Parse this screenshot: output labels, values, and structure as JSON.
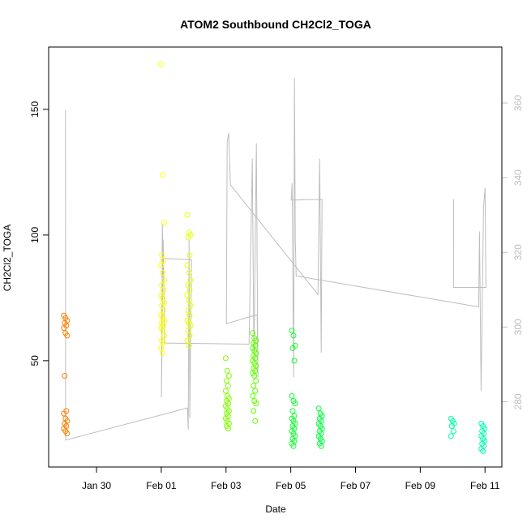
{
  "chart_data": {
    "type": "scatter",
    "title": "ATOM2 Southbound CH2Cl2_TOGA",
    "xlabel": "Date",
    "ylabel": "CH2Cl2_TOGA",
    "xlim": [
      "Jan 28 12:30",
      "Feb 11 12:30"
    ],
    "ylim": [
      7.7,
      174.8
    ],
    "x_ticks": [
      "Jan 30",
      "Feb 01",
      "Feb 03",
      "Feb 05",
      "Feb 07",
      "Feb 09",
      "Feb 11"
    ],
    "y_ticks": [
      50,
      100,
      150
    ],
    "right_axis": {
      "ylim": [
        262.5,
        375
      ],
      "ticks": [
        280,
        300,
        320,
        340,
        360
      ],
      "color": "#BEBEBE"
    },
    "grid": false,
    "series": [
      {
        "time": "Jan 29 01:00",
        "color": "#FF8000",
        "values": [
          68,
          67,
          66,
          65,
          64,
          63,
          61,
          60,
          44,
          30,
          29,
          27,
          26,
          25,
          24,
          23,
          22,
          21
        ]
      },
      {
        "time": "Feb 01 01:00",
        "color": "#FFFF00",
        "values": [
          168,
          124,
          105,
          92,
          90,
          88,
          85,
          82,
          80,
          78,
          76,
          75,
          73,
          72,
          70,
          68,
          67,
          66,
          65,
          64,
          63,
          62,
          60,
          58,
          57,
          55,
          53
        ]
      },
      {
        "time": "Feb 01 20:30",
        "color": "#E6FF00",
        "values": [
          108,
          101,
          100,
          99,
          92,
          88,
          85,
          82,
          80,
          78,
          76,
          74,
          72,
          70,
          68,
          66,
          65,
          64,
          62,
          60,
          58,
          56
        ]
      },
      {
        "time": "Feb 03 01:00",
        "color": "#80FF00",
        "values": [
          51,
          46,
          44,
          42,
          40,
          38,
          36,
          35,
          34,
          33,
          32,
          31,
          30,
          29,
          28,
          27,
          26,
          25,
          24,
          23
        ]
      },
      {
        "time": "Feb 03 21:00",
        "color": "#60FF00",
        "values": [
          61,
          59,
          58,
          57,
          56,
          55,
          54,
          53,
          52,
          51,
          50,
          49,
          48,
          47,
          46,
          45,
          44,
          42,
          40,
          38,
          36,
          34,
          33,
          30,
          26
        ]
      },
      {
        "time": "Feb 05 02:00",
        "color": "#10FF30",
        "values": [
          62,
          60,
          56,
          55,
          50,
          36,
          34,
          33,
          30,
          28,
          27,
          26,
          25,
          24,
          23,
          22,
          21,
          20,
          19,
          18,
          17,
          16
        ]
      },
      {
        "time": "Feb 05 22:00",
        "color": "#00FF40",
        "values": [
          31,
          29,
          28,
          27,
          26,
          25,
          24,
          23,
          22,
          21,
          20,
          19,
          18,
          17,
          16
        ]
      },
      {
        "time": "Feb 10 00:00",
        "color": "#00FFA0",
        "values": [
          27,
          26,
          25,
          24,
          22,
          20
        ]
      },
      {
        "time": "Feb 10 22:30",
        "color": "#00FFB0",
        "values": [
          25,
          24,
          23,
          22,
          21,
          20,
          19,
          18,
          17,
          16,
          15,
          14
        ]
      }
    ],
    "line_series": {
      "axis": "right",
      "color": "#BEBEBE",
      "points": [
        [
          "Jan 29 01:00",
          358.1
        ],
        [
          "Jan 29 01:05",
          269.7
        ],
        [
          "Feb 01 19:25",
          278.3
        ],
        [
          "Feb 01 20:00",
          272.5
        ],
        [
          "Feb 01 20:35",
          323.4
        ],
        [
          "Feb 01 21:10",
          275.7
        ],
        [
          "Feb 01 22:25",
          318.0
        ],
        [
          "Feb 01 01:20",
          318.4
        ],
        [
          "Feb 01 00:45",
          327.7
        ],
        [
          "Feb 01 00:05",
          281.1
        ],
        [
          "Feb 01 01:25",
          323.4
        ],
        [
          "Feb 01 02:30",
          295.7
        ],
        [
          "Feb 03 17:05",
          295.4
        ],
        [
          "Feb 03 19:30",
          345.1
        ],
        [
          "Feb 03 20:40",
          290.9
        ],
        [
          "Feb 03 22:30",
          349.2
        ],
        [
          "Feb 03 23:40",
          286.6
        ],
        [
          "Feb 03 23:05",
          303.3
        ],
        [
          "Feb 03 00:15",
          300.9
        ],
        [
          "Feb 03 00:50",
          349.4
        ],
        [
          "Feb 03 02:00",
          352.0
        ],
        [
          "Feb 03 03:15",
          338.1
        ],
        [
          "Feb 05 20:10",
          308.7
        ],
        [
          "Feb 05 21:25",
          345.1
        ],
        [
          "Feb 05 22:35",
          293.1
        ],
        [
          "Feb 05 23:10",
          334.2
        ],
        [
          "Feb 05 00:20",
          334.0
        ],
        [
          "Feb 05 01:00",
          338.6
        ],
        [
          "Feb 05 02:10",
          286.6
        ],
        [
          "Feb 05 02:45",
          366.7
        ],
        [
          "Feb 05 03:20",
          323.4
        ],
        [
          "Feb 05 04:00",
          313.7
        ],
        [
          "Feb 10 19:20",
          305.4
        ],
        [
          "Feb 10 19:55",
          325.6
        ],
        [
          "Feb 10 21:05",
          282.9
        ],
        [
          "Feb 10 22:55",
          332.1
        ],
        [
          "Feb 11 00:05",
          337.3
        ],
        [
          "Feb 11 00:40",
          310.6
        ],
        [
          "Feb 10 00:40",
          310.6
        ],
        [
          "Feb 10 00:45",
          334.2
        ]
      ]
    }
  }
}
